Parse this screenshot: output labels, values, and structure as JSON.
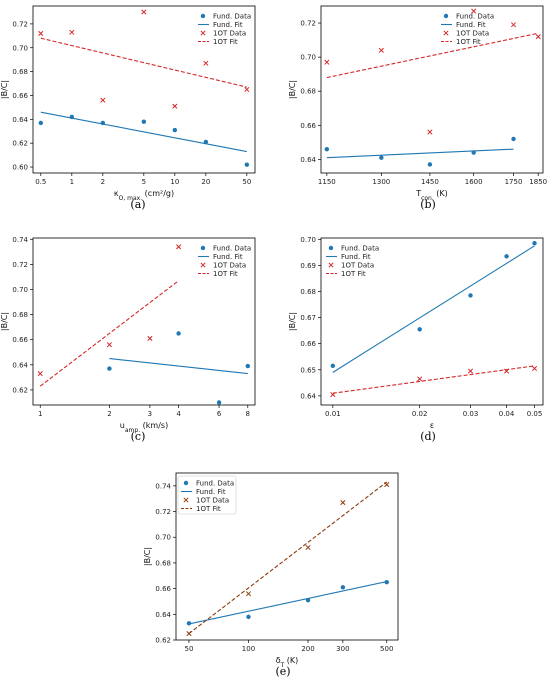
{
  "colors": {
    "fund": "#1f77b4",
    "oneot_a": "#d62728",
    "oneot_e": "#8c3b0c"
  },
  "chart_data": [
    {
      "id": "a",
      "type": "scatter",
      "caption": "(a)",
      "xlabel": "κ_{O, max.} (cm²/g)",
      "ylabel": "|B/C|",
      "x_scale": "log",
      "xlim": [
        0.42,
        60
      ],
      "ylim": [
        0.595,
        0.735
      ],
      "xticks": [
        0.5,
        1,
        2,
        5,
        10,
        20,
        50
      ],
      "xtick_labels": [
        "0.5",
        "1",
        "2",
        "5",
        "10",
        "20",
        "50"
      ],
      "yticks": [
        0.6,
        0.62,
        0.64,
        0.66,
        0.68,
        0.7,
        0.72
      ],
      "ytick_labels": [
        "0.60",
        "0.62",
        "0.64",
        "0.66",
        "0.68",
        "0.70",
        "0.72"
      ],
      "legend": {
        "position": "top-right",
        "framed": false
      },
      "series": [
        {
          "name": "Fund. Data",
          "kind": "points",
          "marker": "dot",
          "color": "fund",
          "points": [
            [
              0.5,
              0.637
            ],
            [
              1,
              0.642
            ],
            [
              2,
              0.637
            ],
            [
              5,
              0.638
            ],
            [
              10,
              0.631
            ],
            [
              20,
              0.621
            ],
            [
              50,
              0.602
            ]
          ]
        },
        {
          "name": "Fund. Fit",
          "kind": "line",
          "color": "fund",
          "points": [
            [
              0.5,
              0.646
            ],
            [
              50,
              0.613
            ]
          ]
        },
        {
          "name": "1OT Data",
          "kind": "points",
          "marker": "x",
          "color": "oneot_a",
          "points": [
            [
              0.5,
              0.712
            ],
            [
              1,
              0.713
            ],
            [
              2,
              0.656
            ],
            [
              5,
              0.73
            ],
            [
              10,
              0.651
            ],
            [
              20,
              0.687
            ],
            [
              50,
              0.665
            ]
          ]
        },
        {
          "name": "1OT Fit",
          "kind": "line",
          "dashed": true,
          "color": "oneot_a",
          "points": [
            [
              0.5,
              0.708
            ],
            [
              50,
              0.667
            ]
          ]
        }
      ]
    },
    {
      "id": "b",
      "type": "scatter",
      "caption": "(b)",
      "xlabel": "T_{con.} (K)",
      "ylabel": "|B/C|",
      "x_scale": "log",
      "xlim": [
        1135,
        1870
      ],
      "ylim": [
        0.632,
        0.73
      ],
      "xticks": [
        1150,
        1300,
        1450,
        1600,
        1750,
        1850
      ],
      "xtick_labels": [
        "1150",
        "1300",
        "1450",
        "1600",
        "1750",
        "1850"
      ],
      "yticks": [
        0.64,
        0.66,
        0.68,
        0.7,
        0.72
      ],
      "ytick_labels": [
        "0.64",
        "0.66",
        "0.68",
        "0.70",
        "0.72"
      ],
      "legend": {
        "position": "top-center",
        "framed": false
      },
      "series": [
        {
          "name": "Fund. Data",
          "kind": "points",
          "marker": "dot",
          "color": "fund",
          "points": [
            [
              1150,
              0.646
            ],
            [
              1300,
              0.641
            ],
            [
              1450,
              0.637
            ],
            [
              1600,
              0.644
            ],
            [
              1750,
              0.652
            ]
          ]
        },
        {
          "name": "Fund. Fit",
          "kind": "line",
          "color": "fund",
          "points": [
            [
              1150,
              0.641
            ],
            [
              1750,
              0.646
            ]
          ]
        },
        {
          "name": "1OT Data",
          "kind": "points",
          "marker": "x",
          "color": "oneot_a",
          "points": [
            [
              1150,
              0.697
            ],
            [
              1300,
              0.704
            ],
            [
              1450,
              0.656
            ],
            [
              1600,
              0.727
            ],
            [
              1750,
              0.719
            ],
            [
              1850,
              0.712
            ]
          ]
        },
        {
          "name": "1OT Fit",
          "kind": "line",
          "dashed": true,
          "color": "oneot_a",
          "points": [
            [
              1150,
              0.688
            ],
            [
              1850,
              0.714
            ]
          ]
        }
      ]
    },
    {
      "id": "c",
      "type": "scatter",
      "caption": "(c)",
      "xlabel": "u_{amp.} (km/s)",
      "ylabel": "|B/C|",
      "x_scale": "log",
      "xlim": [
        0.93,
        8.6
      ],
      "ylim": [
        0.608,
        0.741
      ],
      "xticks": [
        1,
        2,
        3,
        4,
        6,
        8
      ],
      "xtick_labels": [
        "1",
        "2",
        "3",
        "4",
        "6",
        "8"
      ],
      "yticks": [
        0.62,
        0.64,
        0.66,
        0.68,
        0.7,
        0.72,
        0.74
      ],
      "ytick_labels": [
        "0.62",
        "0.64",
        "0.66",
        "0.68",
        "0.70",
        "0.72",
        "0.74"
      ],
      "legend": {
        "position": "top-right",
        "framed": false
      },
      "series": [
        {
          "name": "Fund. Data",
          "kind": "points",
          "marker": "dot",
          "color": "fund",
          "points": [
            [
              2,
              0.637
            ],
            [
              4,
              0.665
            ],
            [
              6,
              0.61
            ],
            [
              8,
              0.639
            ]
          ]
        },
        {
          "name": "Fund. Fit",
          "kind": "line",
          "color": "fund",
          "points": [
            [
              2,
              0.645
            ],
            [
              8,
              0.633
            ]
          ]
        },
        {
          "name": "1OT Data",
          "kind": "points",
          "marker": "x",
          "color": "oneot_a",
          "points": [
            [
              1,
              0.633
            ],
            [
              2,
              0.656
            ],
            [
              3,
              0.661
            ],
            [
              4,
              0.734
            ]
          ]
        },
        {
          "name": "1OT Fit",
          "kind": "line",
          "dashed": true,
          "color": "oneot_a",
          "points": [
            [
              1,
              0.623
            ],
            [
              4,
              0.707
            ]
          ]
        }
      ]
    },
    {
      "id": "d",
      "type": "scatter",
      "caption": "(d)",
      "xlabel": "ε",
      "ylabel": "|B/C|",
      "x_scale": "log",
      "xlim": [
        0.0091,
        0.0535
      ],
      "ylim": [
        0.6365,
        0.7005
      ],
      "xticks": [
        0.01,
        0.02,
        0.03,
        0.04,
        0.05
      ],
      "xtick_labels": [
        "0.01",
        "0.02",
        "0.03",
        "0.04",
        "0.05"
      ],
      "yticks": [
        0.64,
        0.65,
        0.66,
        0.67,
        0.68,
        0.69,
        0.7
      ],
      "ytick_labels": [
        "0.64",
        "0.65",
        "0.66",
        "0.67",
        "0.68",
        "0.69",
        "0.70"
      ],
      "legend": {
        "position": "top-left",
        "framed": false
      },
      "series": [
        {
          "name": "Fund. Data",
          "kind": "points",
          "marker": "dot",
          "color": "fund",
          "points": [
            [
              0.01,
              0.6515
            ],
            [
              0.02,
              0.6655
            ],
            [
              0.03,
              0.6785
            ],
            [
              0.04,
              0.6935
            ],
            [
              0.05,
              0.6985
            ]
          ]
        },
        {
          "name": "Fund. Fit",
          "kind": "line",
          "color": "fund",
          "points": [
            [
              0.01,
              0.649
            ],
            [
              0.05,
              0.6975
            ]
          ]
        },
        {
          "name": "1OT Data",
          "kind": "points",
          "marker": "x",
          "color": "oneot_a",
          "points": [
            [
              0.01,
              0.6405
            ],
            [
              0.02,
              0.6465
            ],
            [
              0.03,
              0.6495
            ],
            [
              0.04,
              0.6495
            ],
            [
              0.05,
              0.6505
            ]
          ]
        },
        {
          "name": "1OT Fit",
          "kind": "line",
          "dashed": true,
          "color": "oneot_a",
          "points": [
            [
              0.01,
              0.641
            ],
            [
              0.05,
              0.6515
            ]
          ]
        }
      ]
    },
    {
      "id": "e",
      "type": "scatter",
      "caption": "(e)",
      "xlabel": "δ_T (K)",
      "ylabel": "|B/C|",
      "x_scale": "log",
      "xlim": [
        43,
        570
      ],
      "ylim": [
        0.62,
        0.75
      ],
      "xticks": [
        50,
        100,
        200,
        300,
        500
      ],
      "xtick_labels": [
        "50",
        "100",
        "200",
        "300",
        "500"
      ],
      "yticks": [
        0.62,
        0.64,
        0.66,
        0.68,
        0.7,
        0.72,
        0.74
      ],
      "ytick_labels": [
        "0.62",
        "0.64",
        "0.66",
        "0.68",
        "0.70",
        "0.72",
        "0.74"
      ],
      "legend": {
        "position": "top-left",
        "framed": true
      },
      "series": [
        {
          "name": "Fund. Data",
          "kind": "points",
          "marker": "dot",
          "color": "fund",
          "points": [
            [
              50,
              0.633
            ],
            [
              100,
              0.638
            ],
            [
              200,
              0.651
            ],
            [
              300,
              0.661
            ],
            [
              500,
              0.665
            ]
          ]
        },
        {
          "name": "Fund. Fit",
          "kind": "line",
          "color": "fund",
          "points": [
            [
              50,
              0.6325
            ],
            [
              500,
              0.6655
            ]
          ]
        },
        {
          "name": "1OT Data",
          "kind": "points",
          "marker": "x",
          "color": "oneot_e",
          "points": [
            [
              50,
              0.625
            ],
            [
              100,
              0.656
            ],
            [
              200,
              0.692
            ],
            [
              300,
              0.727
            ],
            [
              500,
              0.741
            ]
          ]
        },
        {
          "name": "1OT Fit",
          "kind": "line",
          "dashed": true,
          "color": "oneot_e",
          "points": [
            [
              50,
              0.625
            ],
            [
              500,
              0.743
            ]
          ]
        }
      ]
    }
  ]
}
